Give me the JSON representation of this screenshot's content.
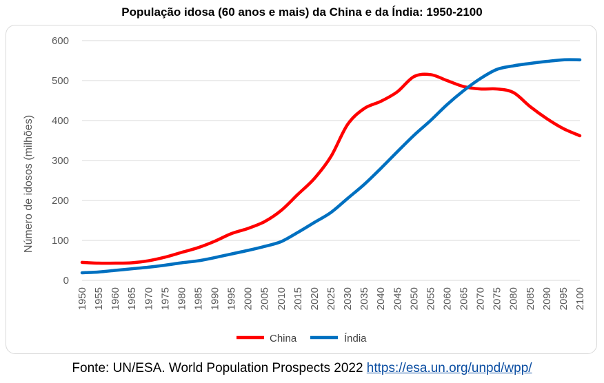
{
  "chart_data": {
    "type": "line",
    "title": "População idosa (60 anos e mais) da China e da Índia: 1950-2100",
    "xlabel": "",
    "ylabel": "Número de idosos (milhões)",
    "ylim": [
      0,
      600
    ],
    "yticks": [
      "0",
      "100",
      "200",
      "300",
      "400",
      "500",
      "600"
    ],
    "xlim": [
      1950,
      2100
    ],
    "xticks": [
      "1950",
      "1955",
      "1960",
      "1965",
      "1970",
      "1975",
      "1980",
      "1985",
      "1990",
      "1995",
      "2000",
      "2005",
      "2010",
      "2015",
      "2020",
      "2025",
      "2030",
      "2035",
      "2040",
      "2045",
      "2050",
      "2055",
      "2060",
      "2065",
      "2070",
      "2075",
      "2080",
      "2085",
      "2090",
      "2095",
      "2100"
    ],
    "grid": "horizontal",
    "legend_position": "bottom",
    "x": [
      1950,
      1955,
      1960,
      1965,
      1970,
      1975,
      1980,
      1985,
      1990,
      1995,
      2000,
      2005,
      2010,
      2015,
      2020,
      2025,
      2030,
      2035,
      2040,
      2045,
      2050,
      2055,
      2060,
      2065,
      2070,
      2075,
      2080,
      2085,
      2090,
      2095,
      2100
    ],
    "series": [
      {
        "name": "China",
        "color": "#ff0000",
        "values": [
          45,
          43,
          43,
          44,
          49,
          58,
          70,
          82,
          98,
          117,
          130,
          147,
          175,
          215,
          255,
          310,
          390,
          430,
          448,
          472,
          510,
          515,
          500,
          485,
          479,
          479,
          470,
          435,
          405,
          380,
          362
        ]
      },
      {
        "name": "Índia",
        "color": "#0070c0",
        "values": [
          19,
          21,
          25,
          29,
          33,
          38,
          44,
          49,
          57,
          66,
          75,
          85,
          97,
          120,
          145,
          170,
          205,
          240,
          280,
          322,
          363,
          400,
          440,
          475,
          505,
          528,
          537,
          543,
          548,
          552,
          552
        ]
      }
    ]
  },
  "source": {
    "text": "Fonte: UN/ESA. World Population Prospects 2022 ",
    "link": "https://esa.un.org/unpd/wpp/"
  }
}
